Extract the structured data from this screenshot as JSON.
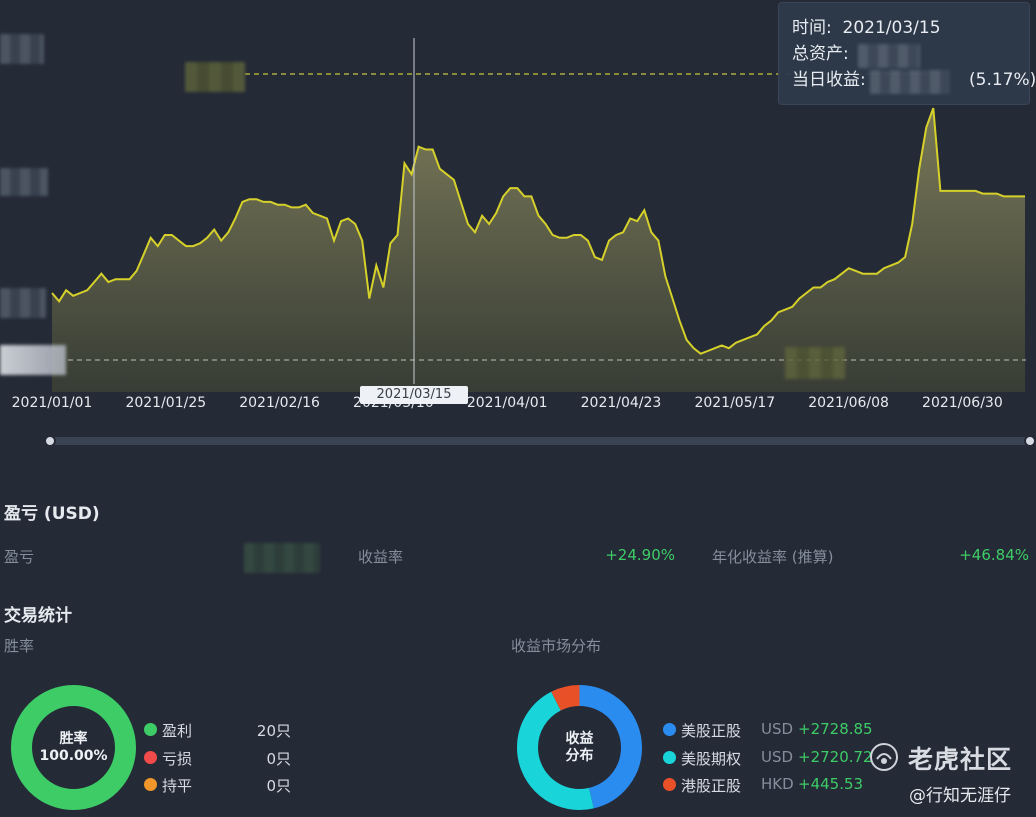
{
  "chart": {
    "tooltip": {
      "time_label": "时间:",
      "time_value": "2021/03/15",
      "assets_label": "总资产:",
      "daily_label": "当日收益:",
      "daily_pct": "(5.17%)"
    },
    "cursor_date": "2021/03/15",
    "line_color": "#d6d12a",
    "x_tick_labels": [
      "2021/01/01",
      "2021/01/25",
      "2021/02/16",
      "2021/03/10",
      "2021/04/01",
      "2021/04/23",
      "2021/05/17",
      "2021/06/08",
      "2021/06/30"
    ],
    "series_points": [
      0.25,
      0.22,
      0.26,
      0.24,
      0.25,
      0.26,
      0.29,
      0.32,
      0.29,
      0.3,
      0.3,
      0.3,
      0.33,
      0.39,
      0.45,
      0.42,
      0.46,
      0.46,
      0.44,
      0.42,
      0.42,
      0.43,
      0.45,
      0.48,
      0.44,
      0.47,
      0.52,
      0.58,
      0.59,
      0.59,
      0.58,
      0.58,
      0.57,
      0.57,
      0.56,
      0.56,
      0.57,
      0.54,
      0.53,
      0.52,
      0.44,
      0.51,
      0.52,
      0.5,
      0.44,
      0.23,
      0.35,
      0.27,
      0.43,
      0.46,
      0.72,
      0.68,
      0.78,
      0.77,
      0.77,
      0.7,
      0.68,
      0.66,
      0.58,
      0.5,
      0.47,
      0.53,
      0.5,
      0.54,
      0.6,
      0.63,
      0.63,
      0.6,
      0.6,
      0.53,
      0.5,
      0.46,
      0.45,
      0.45,
      0.46,
      0.46,
      0.44,
      0.38,
      0.37,
      0.44,
      0.46,
      0.47,
      0.52,
      0.51,
      0.55,
      0.47,
      0.44,
      0.31,
      0.23,
      0.15,
      0.08,
      0.05,
      0.03,
      0.04,
      0.05,
      0.06,
      0.05,
      0.07,
      0.08,
      0.09,
      0.1,
      0.13,
      0.15,
      0.18,
      0.19,
      0.2,
      0.23,
      0.25,
      0.27,
      0.27,
      0.29,
      0.3,
      0.32,
      0.34,
      0.33,
      0.32,
      0.32,
      0.32,
      0.34,
      0.35,
      0.36,
      0.38,
      0.5,
      0.7,
      0.85,
      0.92,
      0.62,
      0.62,
      0.62,
      0.62,
      0.62,
      0.62,
      0.61,
      0.61,
      0.61,
      0.6,
      0.6,
      0.6,
      0.6
    ]
  },
  "pnl": {
    "title": "盈亏 (USD)",
    "pnl_label": "盈亏",
    "return_label": "收益率",
    "return_value": "+24.90%",
    "annual_label": "年化收益率 (推算)",
    "annual_value": "+46.84%"
  },
  "stats": {
    "title": "交易统计",
    "winrate_label": "胜率",
    "market_label": "收益市场分布",
    "win_donut": {
      "center_title": "胜率",
      "center_value": "100.00%",
      "color": "#3ecc67",
      "fraction": 1.0
    },
    "win_legend": [
      {
        "label": "盈利",
        "count": "20只",
        "color": "#3ecc67"
      },
      {
        "label": "亏损",
        "count": "0只",
        "color": "#f04a4a"
      },
      {
        "label": "持平",
        "count": "0只",
        "color": "#f0962a"
      }
    ],
    "market_donut": {
      "center_line1": "收益",
      "center_line2": "分布",
      "slices": [
        {
          "name": "美股正股",
          "value": 2728.85,
          "color": "#2b8cf0"
        },
        {
          "name": "美股期权",
          "value": 2720.72,
          "color": "#19d4d8"
        },
        {
          "name": "港股正股",
          "value": 445.53,
          "color": "#e85028"
        }
      ]
    },
    "market_legend": [
      {
        "label": "美股正股",
        "currency": "USD",
        "amount": "+2728.85",
        "color": "#2b8cf0"
      },
      {
        "label": "美股期权",
        "currency": "USD",
        "amount": "+2720.72",
        "color": "#19d4d8"
      },
      {
        "label": "港股正股",
        "currency": "HKD",
        "amount": "+445.53",
        "color": "#e85028"
      }
    ]
  },
  "watermark": {
    "brand": "老虎社区",
    "author": "@行知无涯仔"
  }
}
